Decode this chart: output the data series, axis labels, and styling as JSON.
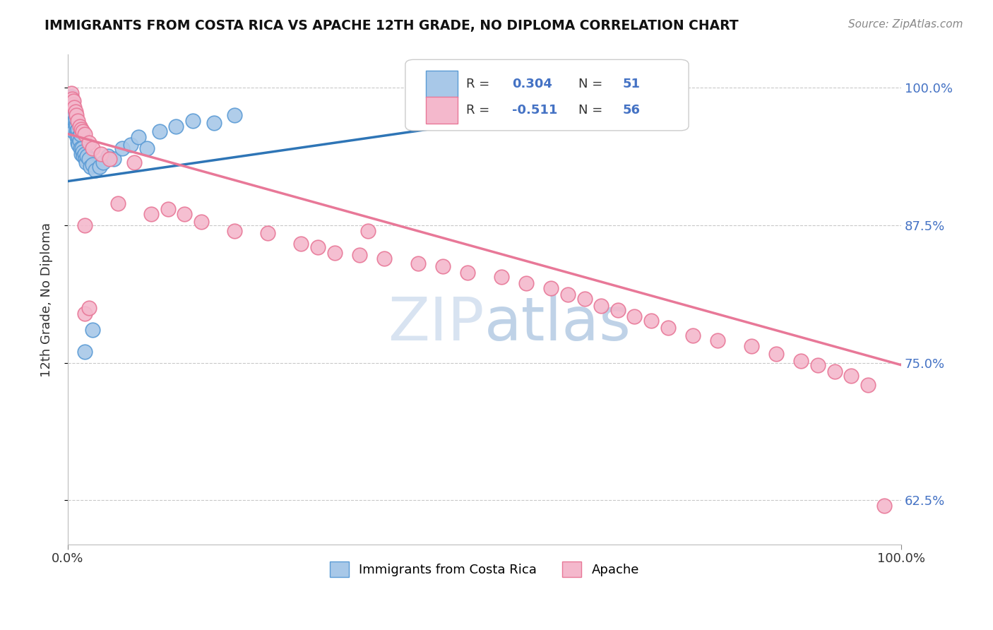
{
  "title": "IMMIGRANTS FROM COSTA RICA VS APACHE 12TH GRADE, NO DIPLOMA CORRELATION CHART",
  "source": "Source: ZipAtlas.com",
  "ylabel": "12th Grade, No Diploma",
  "xmin": 0.0,
  "xmax": 1.0,
  "ymin": 0.585,
  "ymax": 1.03,
  "yticks": [
    0.625,
    0.75,
    0.875,
    1.0
  ],
  "ytick_labels": [
    "62.5%",
    "75.0%",
    "87.5%",
    "100.0%"
  ],
  "xtick_labels": [
    "0.0%",
    "100.0%"
  ],
  "blue_R": 0.304,
  "blue_N": 51,
  "pink_R": -0.511,
  "pink_N": 56,
  "blue_color": "#A8C8E8",
  "pink_color": "#F4B8CC",
  "blue_edge_color": "#5B9BD5",
  "pink_edge_color": "#E87898",
  "blue_line_color": "#2E75B6",
  "pink_line_color": "#E87898",
  "legend_text_color": "#333333",
  "legend_value_color": "#4472C4",
  "watermark_color": "#C8D8EC",
  "blue_scatter_x": [
    0.002,
    0.003,
    0.004,
    0.005,
    0.005,
    0.006,
    0.006,
    0.007,
    0.007,
    0.008,
    0.008,
    0.009,
    0.009,
    0.01,
    0.01,
    0.011,
    0.011,
    0.012,
    0.012,
    0.013,
    0.013,
    0.014,
    0.015,
    0.015,
    0.016,
    0.017,
    0.018,
    0.019,
    0.02,
    0.021,
    0.022,
    0.023,
    0.025,
    0.027,
    0.03,
    0.033,
    0.038,
    0.042,
    0.048,
    0.055,
    0.065,
    0.075,
    0.085,
    0.095,
    0.11,
    0.13,
    0.15,
    0.175,
    0.2,
    0.03,
    0.02
  ],
  "blue_scatter_y": [
    0.99,
    0.975,
    0.992,
    0.97,
    0.985,
    0.965,
    0.988,
    0.96,
    0.98,
    0.975,
    0.97,
    0.968,
    0.972,
    0.965,
    0.96,
    0.958,
    0.955,
    0.962,
    0.95,
    0.955,
    0.948,
    0.952,
    0.945,
    0.958,
    0.94,
    0.945,
    0.942,
    0.938,
    0.94,
    0.935,
    0.932,
    0.938,
    0.935,
    0.928,
    0.93,
    0.925,
    0.928,
    0.932,
    0.938,
    0.935,
    0.945,
    0.948,
    0.955,
    0.945,
    0.96,
    0.965,
    0.97,
    0.968,
    0.975,
    0.78,
    0.76
  ],
  "pink_scatter_x": [
    0.004,
    0.005,
    0.006,
    0.007,
    0.008,
    0.009,
    0.01,
    0.012,
    0.014,
    0.016,
    0.018,
    0.02,
    0.025,
    0.03,
    0.04,
    0.05,
    0.06,
    0.08,
    0.1,
    0.12,
    0.14,
    0.16,
    0.2,
    0.24,
    0.28,
    0.3,
    0.32,
    0.35,
    0.38,
    0.42,
    0.45,
    0.48,
    0.52,
    0.55,
    0.58,
    0.6,
    0.62,
    0.64,
    0.66,
    0.68,
    0.7,
    0.72,
    0.75,
    0.78,
    0.82,
    0.85,
    0.88,
    0.9,
    0.92,
    0.94,
    0.02,
    0.025,
    0.36,
    0.02,
    0.96,
    0.98
  ],
  "pink_scatter_y": [
    0.995,
    0.99,
    0.985,
    0.988,
    0.982,
    0.978,
    0.975,
    0.97,
    0.965,
    0.962,
    0.96,
    0.958,
    0.95,
    0.945,
    0.94,
    0.935,
    0.895,
    0.932,
    0.885,
    0.89,
    0.885,
    0.878,
    0.87,
    0.868,
    0.858,
    0.855,
    0.85,
    0.848,
    0.845,
    0.84,
    0.838,
    0.832,
    0.828,
    0.822,
    0.818,
    0.812,
    0.808,
    0.802,
    0.798,
    0.792,
    0.788,
    0.782,
    0.775,
    0.77,
    0.765,
    0.758,
    0.752,
    0.748,
    0.742,
    0.738,
    0.795,
    0.8,
    0.87,
    0.875,
    0.73,
    0.62
  ],
  "blue_line_x0": 0.0,
  "blue_line_x1": 0.55,
  "blue_line_y0": 0.915,
  "blue_line_y1": 0.975,
  "pink_line_x0": 0.0,
  "pink_line_x1": 1.0,
  "pink_line_y0": 0.958,
  "pink_line_y1": 0.748
}
